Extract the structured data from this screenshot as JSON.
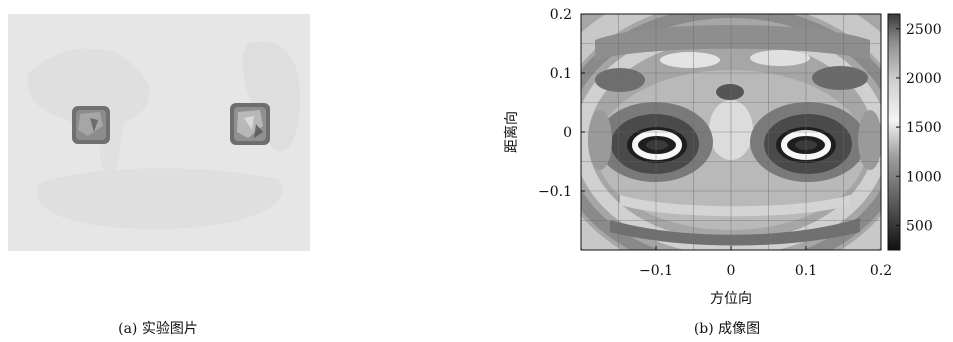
{
  "captions": {
    "a": "(a) 实验图片",
    "b": "(b) 成像图"
  },
  "chart_data": {
    "type": "heatmap",
    "title": "",
    "xlabel": "方位向",
    "ylabel": "距离向",
    "xlim": [
      -0.2,
      0.2
    ],
    "ylim": [
      -0.2,
      0.2
    ],
    "xticks": [
      -0.1,
      0,
      0.1,
      0.2
    ],
    "xtick_labels": [
      "−0.1",
      "0",
      "0.1",
      "0.2"
    ],
    "yticks": [
      0.2,
      0.1,
      0,
      -0.1
    ],
    "ytick_labels": [
      "0.2",
      "0.1",
      "0",
      "−0.1"
    ],
    "grid": true,
    "colorbar": {
      "range": [
        250,
        2650
      ],
      "ticks": [
        2500,
        2000,
        1500,
        1000,
        500
      ],
      "tick_labels": [
        "2500",
        "2000",
        "1500",
        "1000",
        "500"
      ]
    },
    "targets": [
      {
        "x": -0.1,
        "y": -0.02
      },
      {
        "x": 0.11,
        "y": -0.02
      }
    ]
  }
}
